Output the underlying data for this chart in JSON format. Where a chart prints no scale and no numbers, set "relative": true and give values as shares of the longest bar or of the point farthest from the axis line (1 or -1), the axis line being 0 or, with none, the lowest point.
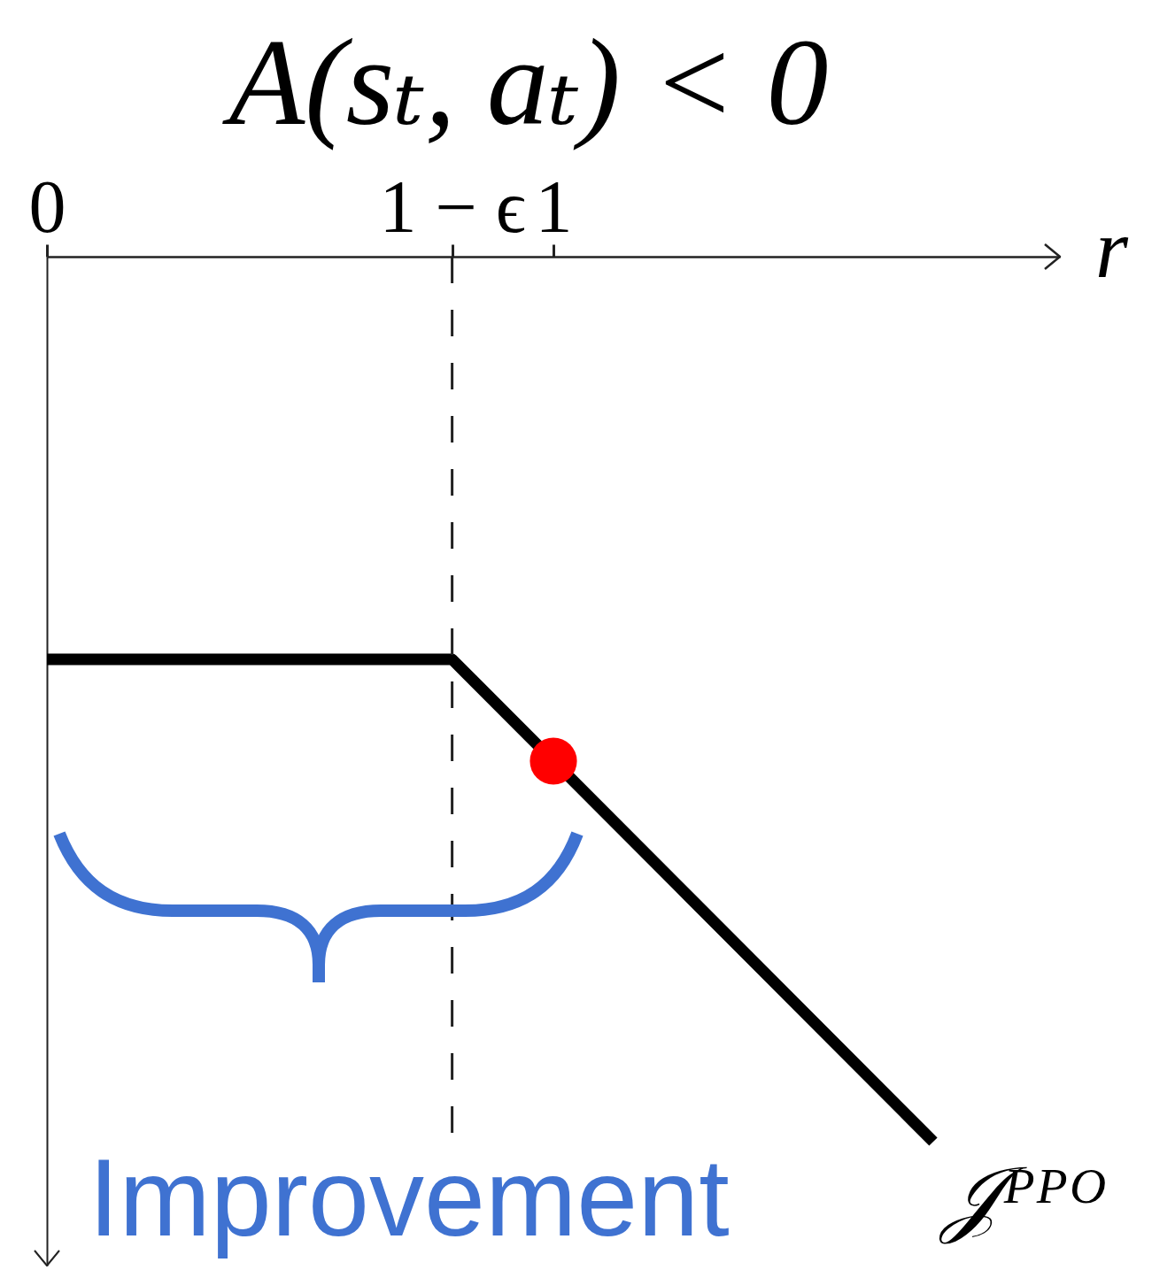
{
  "chart_data": {
    "type": "line",
    "title": "A(sₜ, aₜ) < 0",
    "xlabel": "r",
    "relative": true,
    "x": [
      0,
      0.8,
      1.75
    ],
    "xlim": [
      0,
      2
    ],
    "xticks": [
      0,
      {
        "value": 0.8,
        "label": "1 − ϵ"
      },
      1
    ],
    "tick_labels": "x",
    "series": [
      {
        "name": "𝒥ᴾᴾᴼ",
        "color": "#000000",
        "values": [
          -0.455,
          -0.455,
          -1
        ]
      },
      {
        "type": "scatter",
        "color": "#ff0000",
        "x": [
          1
        ],
        "values": [
          -0.57
        ]
      }
    ],
    "ref_lines": [
      {
        "axis": "x",
        "value": 0.8,
        "line_style": "dashed"
      }
    ],
    "annotations": [
      "Improvement"
    ],
    "grid": false,
    "legend": false,
    "line_style": "solid"
  }
}
